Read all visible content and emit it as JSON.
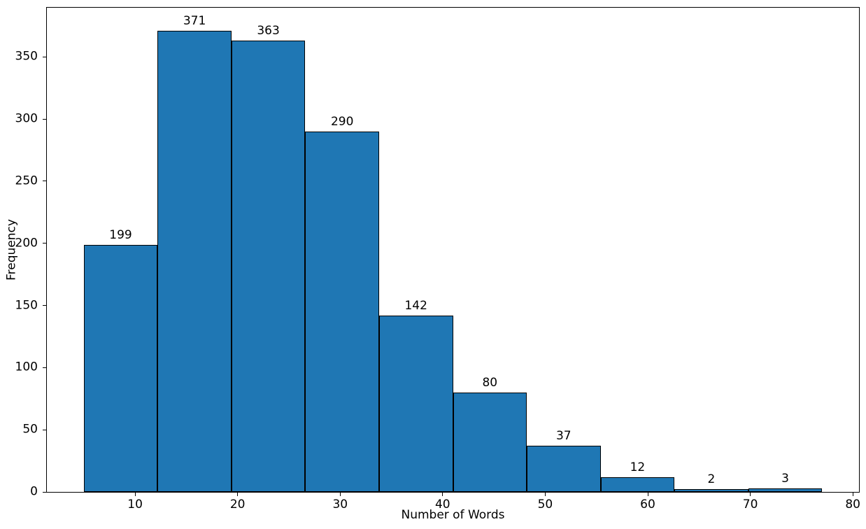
{
  "page": {
    "background_color": "#ffffff",
    "text_color": "#000000"
  },
  "chart_data": {
    "type": "bar",
    "subtype": "histogram",
    "title": "",
    "xlabel": "Number of Words",
    "ylabel": "Frequency",
    "bin_edges": [
      5.0,
      12.2,
      19.4,
      26.6,
      33.8,
      41.0,
      48.2,
      55.4,
      62.6,
      69.8,
      77.0
    ],
    "values": [
      199,
      371,
      363,
      290,
      142,
      80,
      37,
      12,
      2,
      3
    ],
    "bar_labels": [
      "199",
      "371",
      "363",
      "290",
      "142",
      "80",
      "37",
      "12",
      "2",
      "3"
    ],
    "x_ticks": [
      10,
      20,
      30,
      40,
      50,
      60,
      70,
      80
    ],
    "y_ticks": [
      0,
      50,
      100,
      150,
      200,
      250,
      300,
      350
    ],
    "xlim": [
      1.4,
      80.6
    ],
    "ylim": [
      0,
      389.55
    ],
    "bar_color": "#1f77b4",
    "bar_edge_color": "#000000",
    "grid": false,
    "legend_position": "none"
  }
}
